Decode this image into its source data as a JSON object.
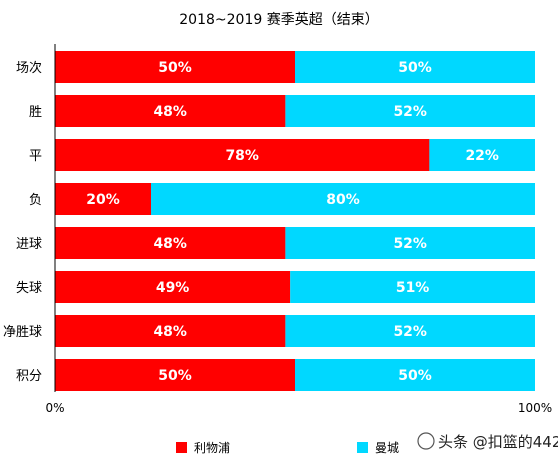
{
  "chart_data": {
    "type": "bar",
    "orientation": "horizontal",
    "stacked": "percent",
    "title": "2018~2019 赛季英超（结束）",
    "categories": [
      "场次",
      "胜",
      "平",
      "负",
      "进球",
      "失球",
      "净胜球",
      "积分"
    ],
    "series": [
      {
        "name": "利物浦",
        "color": "#ff0000",
        "values": [
          50,
          48,
          78,
          20,
          48,
          49,
          48,
          50
        ]
      },
      {
        "name": "曼城",
        "color": "#00d8ff",
        "values": [
          50,
          52,
          22,
          80,
          52,
          51,
          52,
          50
        ]
      }
    ],
    "x_ticks": [
      "0%",
      "100%"
    ],
    "xlim": [
      0,
      100
    ],
    "legend_position": "bottom",
    "grid": false
  },
  "watermark": "头条 @扣篮的442"
}
